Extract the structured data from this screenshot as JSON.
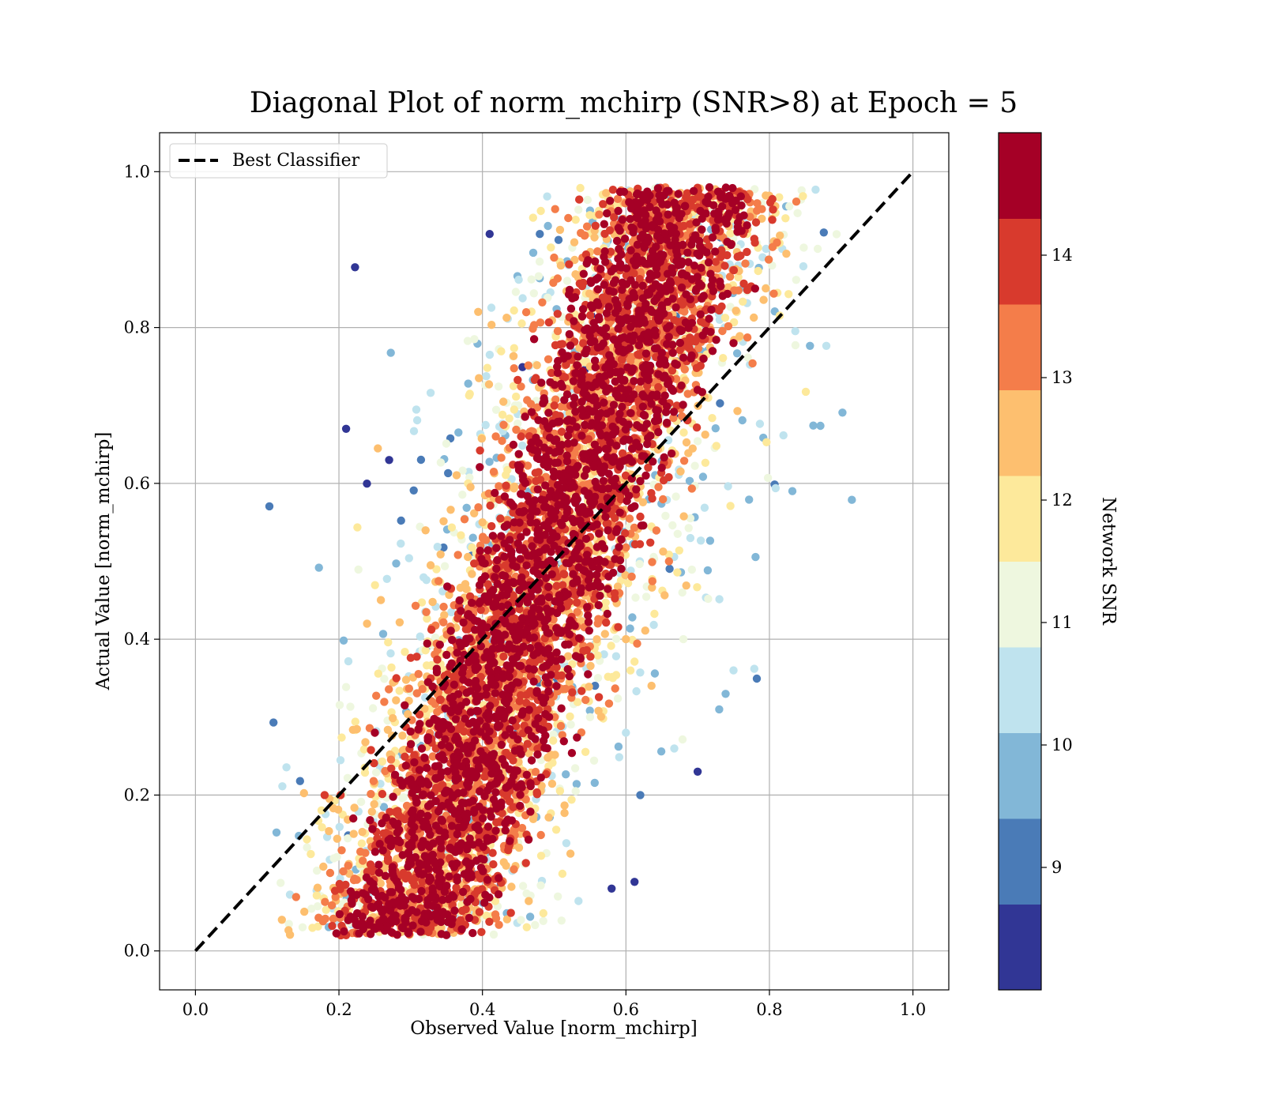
{
  "chart_data": {
    "type": "scatter",
    "title": "Diagonal Plot of norm_mchirp (SNR>8) at Epoch = 5",
    "xlabel": "Observed Value [norm_mchirp]",
    "ylabel": "Actual Value [norm_mchirp]",
    "xlim": [
      -0.05,
      1.05
    ],
    "ylim": [
      -0.05,
      1.05
    ],
    "x_ticks": [
      "0.0",
      "0.2",
      "0.4",
      "0.6",
      "0.8",
      "1.0"
    ],
    "y_ticks": [
      "0.0",
      "0.2",
      "0.4",
      "0.6",
      "0.8",
      "1.0"
    ],
    "grid": true,
    "legend": {
      "placement": "top-left",
      "entries": [
        "Best Classifier"
      ]
    },
    "reference_line": {
      "name": "Best Classifier",
      "style": "dashed",
      "color": "#000000",
      "x": [
        0,
        1
      ],
      "y": [
        0,
        1
      ]
    },
    "colorbar": {
      "label": "Network SNR",
      "range": [
        8,
        15
      ],
      "ticks": [
        "9",
        "10",
        "11",
        "12",
        "13",
        "14"
      ],
      "tick_values": [
        9,
        10,
        11,
        12,
        13,
        14
      ],
      "bins": 10,
      "colors": [
        "#313695",
        "#4a7bb7",
        "#82b7d7",
        "#bfe3ee",
        "#eef7df",
        "#fde99b",
        "#fdbf6f",
        "#f47d4a",
        "#d83a2d",
        "#a50026"
      ]
    },
    "points_description": "Approximately 20,000 points spread along the y = x diagonal; spread grows with distance from the diagonal and low-SNR (blue) points lie farther from it than high-SNR (red) points.",
    "points": [
      [
        0.22,
        0.17,
        14.8
      ],
      [
        0.25,
        0.28,
        14.6
      ],
      [
        0.3,
        0.22,
        14.9
      ],
      [
        0.35,
        0.38,
        14.7
      ],
      [
        0.4,
        0.42,
        14.9
      ],
      [
        0.45,
        0.4,
        14.5
      ],
      [
        0.5,
        0.52,
        14.8
      ],
      [
        0.55,
        0.5,
        14.9
      ],
      [
        0.6,
        0.63,
        14.6
      ],
      [
        0.65,
        0.62,
        14.9
      ],
      [
        0.7,
        0.72,
        14.7
      ],
      [
        0.75,
        0.78,
        14.8
      ],
      [
        0.78,
        0.85,
        14.5
      ],
      [
        0.18,
        0.2,
        14.2
      ],
      [
        0.28,
        0.35,
        13.8
      ],
      [
        0.42,
        0.5,
        13.6
      ],
      [
        0.58,
        0.66,
        13.9
      ],
      [
        0.72,
        0.84,
        13.7
      ],
      [
        0.32,
        0.2,
        13.5
      ],
      [
        0.5,
        0.38,
        13.3
      ],
      [
        0.66,
        0.5,
        13.6
      ],
      [
        0.4,
        0.55,
        12.6
      ],
      [
        0.55,
        0.75,
        12.4
      ],
      [
        0.35,
        0.12,
        12.8
      ],
      [
        0.6,
        0.4,
        12.3
      ],
      [
        0.45,
        0.7,
        11.2
      ],
      [
        0.38,
        0.6,
        11.5
      ],
      [
        0.55,
        0.3,
        11.3
      ],
      [
        0.68,
        0.4,
        11.0
      ],
      [
        0.47,
        0.8,
        10.3
      ],
      [
        0.52,
        0.88,
        10.6
      ],
      [
        0.6,
        0.28,
        10.4
      ],
      [
        0.75,
        0.36,
        10.2
      ],
      [
        0.48,
        0.92,
        9.3
      ],
      [
        0.55,
        0.95,
        9.6
      ],
      [
        0.62,
        0.2,
        9.2
      ],
      [
        0.73,
        0.31,
        9.5
      ],
      [
        0.27,
        0.63,
        8.4
      ],
      [
        0.21,
        0.67,
        8.5
      ],
      [
        0.41,
        0.92,
        8.3
      ],
      [
        0.7,
        0.23,
        8.6
      ],
      [
        0.58,
        0.08,
        8.4
      ]
    ]
  }
}
